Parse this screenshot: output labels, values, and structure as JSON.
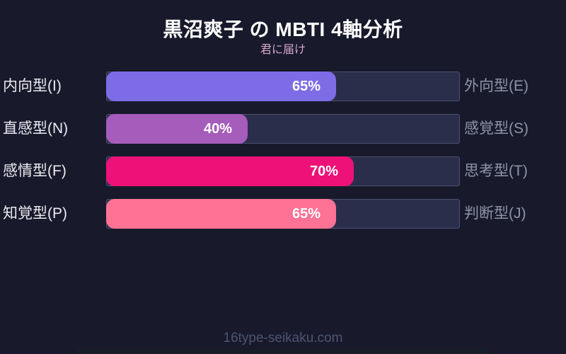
{
  "header": {
    "title": "黒沼爽子 の MBTI 4軸分析",
    "subtitle": "君に届け"
  },
  "chart_data": {
    "type": "bar",
    "orientation": "horizontal",
    "xlim": [
      0,
      100
    ],
    "grid": false,
    "legend": "none",
    "title": "黒沼爽子 の MBTI 4軸分析",
    "subtitle": "君に届け",
    "rows": [
      {
        "left_label": "内向型(I)",
        "right_label": "外向型(E)",
        "value": 65,
        "value_label": "65%",
        "color": "#7d6ce6"
      },
      {
        "left_label": "直感型(N)",
        "right_label": "感覚型(S)",
        "value": 40,
        "value_label": "40%",
        "color": "#a55cbb"
      },
      {
        "left_label": "感情型(F)",
        "right_label": "思考型(T)",
        "value": 70,
        "value_label": "70%",
        "color": "#ee1178"
      },
      {
        "left_label": "知覚型(P)",
        "right_label": "判断型(J)",
        "value": 65,
        "value_label": "65%",
        "color": "#fd7295"
      }
    ]
  },
  "footer": {
    "watermark": "16type-seikaku.com"
  },
  "colors": {
    "background": "#181a2b",
    "track": "#2b2e4b",
    "track_border": "#4b5070",
    "title_text": "#ffffff",
    "subtitle_text": "#d2a6cb",
    "left_label_text": "#eceaf2",
    "right_label_text": "#8f93a6",
    "value_text": "#ffffff",
    "watermark_text": "#4e5470"
  }
}
